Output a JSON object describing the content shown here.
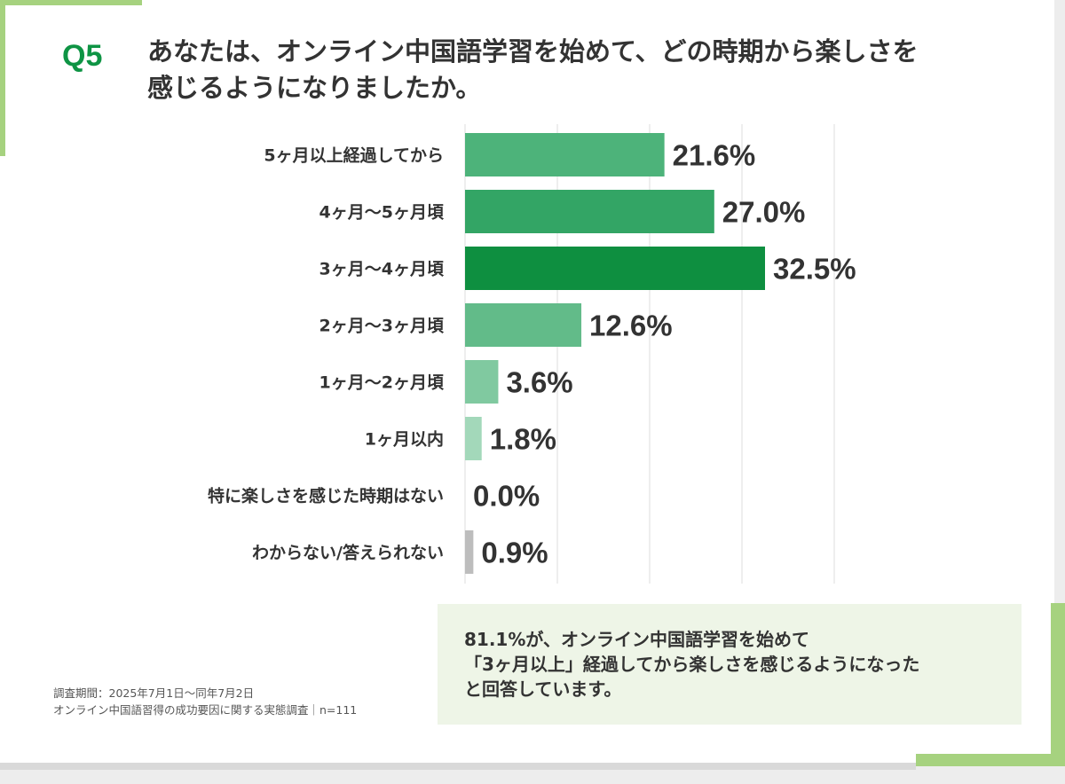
{
  "question": {
    "label": "Q5",
    "line1": "あなたは、オンライン中国語学習を始めて、どの時期から楽しさを",
    "line2": "感じるようになりましたか。"
  },
  "chart_data": {
    "type": "bar",
    "orientation": "horizontal",
    "categories": [
      "5ヶ月以上経過してから",
      "4ヶ月〜5ヶ月頃",
      "3ヶ月〜4ヶ月頃",
      "2ヶ月〜3ヶ月頃",
      "1ヶ月〜2ヶ月頃",
      "1ヶ月以内",
      "特に楽しさを感じた時期はない",
      "わからない/答えられない"
    ],
    "values": [
      21.6,
      27.0,
      32.5,
      12.6,
      3.6,
      1.8,
      0.0,
      0.9
    ],
    "value_labels": [
      "21.6%",
      "27.0%",
      "32.5%",
      "12.6%",
      "3.6%",
      "1.8%",
      "0.0%",
      "0.9%"
    ],
    "colors": [
      "#4db37a",
      "#33a565",
      "#0e8f40",
      "#62bb89",
      "#80c9a0",
      "#a3d8ba",
      "#cccccc",
      "#bdbdbd"
    ],
    "xlim": [
      0,
      40
    ],
    "grid": true,
    "legend": "none"
  },
  "note": {
    "line1": "調査期間：2025年7月1日〜同年7月2日",
    "line2": "オンライン中国語習得の成功要因に関する実態調査｜n=111"
  },
  "callout": {
    "line1": "81.1%が、オンライン中国語学習を始めて",
    "line2": "「3ヶ月以上」経過してから楽しさを感じるようになった",
    "line3": "と回答しています。"
  },
  "colors": {
    "accent_green": "#0e9444",
    "frame_green": "#a6d27f",
    "callout_bg": "#eef5e7"
  }
}
